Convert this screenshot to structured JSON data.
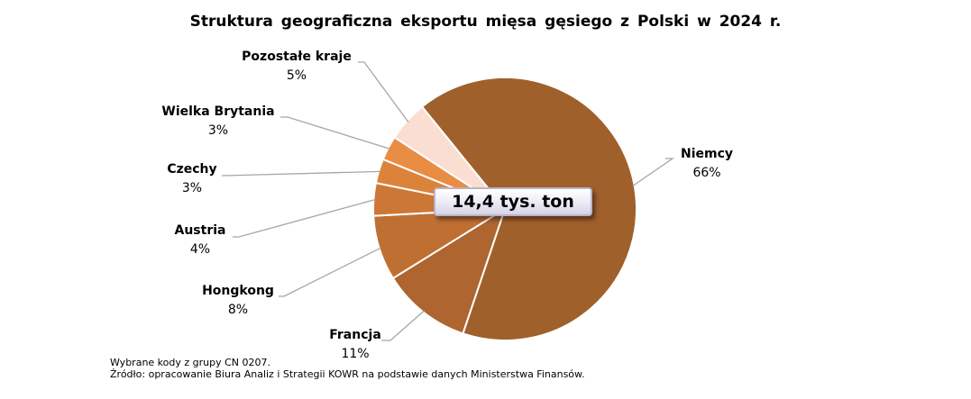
{
  "chart_data": {
    "type": "pie",
    "title": "Struktura geograficzna eksportu mięsa gęsiego z Polski w 2024 r.",
    "center_label": "14,4 tys. ton",
    "slices": [
      {
        "name": "Niemcy",
        "value": 66,
        "label": "66%",
        "color": "#a0602b"
      },
      {
        "name": "Francja",
        "value": 11,
        "label": "11%",
        "color": "#ae6530"
      },
      {
        "name": "Hongkong",
        "value": 8,
        "label": "8%",
        "color": "#c06f33"
      },
      {
        "name": "Austria",
        "value": 4,
        "label": "4%",
        "color": "#cd7737"
      },
      {
        "name": "Czechy",
        "value": 3,
        "label": "3%",
        "color": "#dc833b"
      },
      {
        "name": "Wielka Brytania",
        "value": 3,
        "label": "3%",
        "color": "#e98d44"
      },
      {
        "name": "Pozostałe kraje",
        "value": 5,
        "label": "5%",
        "color": "#fbded2"
      }
    ]
  },
  "footnote": {
    "line1": "Wybrane kody z grupy CN 0207.",
    "line2": "Źródło: opracowanie Biura Analiz i Strategii KOWR na podstawie danych Ministerstwa Finansów."
  }
}
